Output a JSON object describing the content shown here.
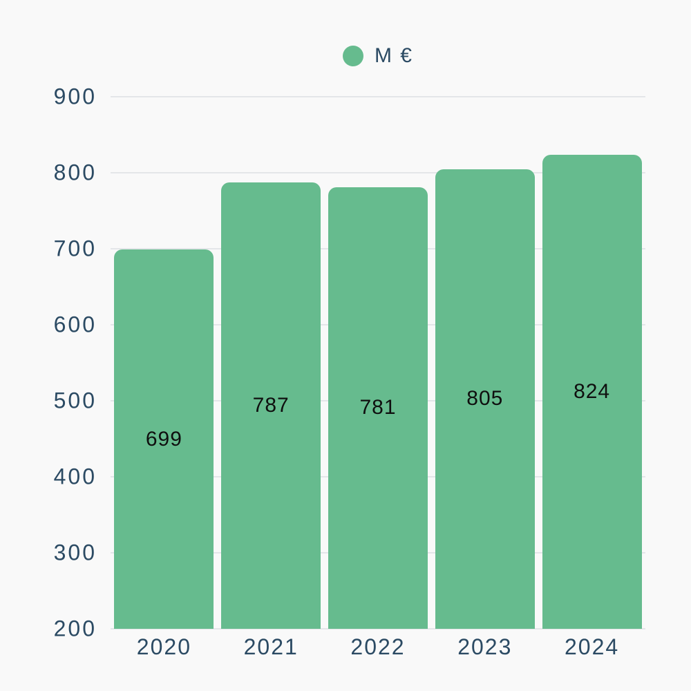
{
  "chart": {
    "legend": {
      "label": "M €",
      "marker_color": "#66BB8E"
    },
    "colors": {
      "background": "#F9F9F9",
      "bar": "#66BB8E",
      "axis_text": "#2B4A63",
      "value_text": "#0F0F0F",
      "gridline": "#E4E6E9"
    }
  },
  "chart_data": {
    "type": "bar",
    "title": "",
    "xlabel": "",
    "ylabel": "",
    "categories": [
      "2020",
      "2021",
      "2022",
      "2023",
      "2024"
    ],
    "values": [
      699,
      787,
      781,
      805,
      824
    ],
    "series_name": "M €",
    "ylim": [
      200,
      900
    ],
    "y_ticks": [
      200,
      300,
      400,
      500,
      600,
      700,
      800,
      900
    ],
    "grid": true,
    "legend_position": "top-center",
    "value_label_position": "inside-middle"
  }
}
